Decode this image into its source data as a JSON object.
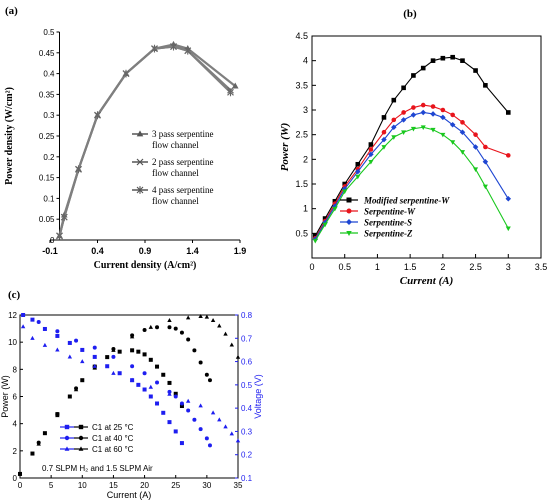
{
  "chart_data": [
    {
      "panel_label": "(a)",
      "type": "line",
      "xlabel": "Current density (A/cm²)",
      "ylabel": "Power density (W/cm²)",
      "xlim": [
        -0.1,
        1.9
      ],
      "ylim": [
        0,
        0.5
      ],
      "xticks": [
        "-0.1",
        "0.4",
        "0.9",
        "1.4",
        "1.9"
      ],
      "yticks": [
        "0",
        "0.05",
        "0.1",
        "0.15",
        "0.2",
        "0.25",
        "0.3",
        "0.35",
        "0.4",
        "0.45",
        "0.5"
      ],
      "xtick_values": [
        -0.1,
        0.4,
        0.9,
        1.4,
        1.9
      ],
      "ytick_values": [
        0,
        0.05,
        0.1,
        0.15,
        0.2,
        0.25,
        0.3,
        0.35,
        0.4,
        0.45,
        0.5
      ],
      "legend_position": "right",
      "series": [
        {
          "name": "3 pass serpentine flow channel",
          "marker": "triangle",
          "color": "#7f7f7f",
          "x": [
            0.0,
            0.05,
            0.2,
            0.4,
            0.7,
            1.0,
            1.2,
            1.35,
            1.85
          ],
          "y": [
            0.01,
            0.06,
            0.17,
            0.3,
            0.4,
            0.46,
            0.47,
            0.46,
            0.37
          ]
        },
        {
          "name": "2 pass serpentine flow channel",
          "marker": "x",
          "color": "#7f7f7f",
          "x": [
            0.0,
            0.05,
            0.2,
            0.4,
            0.7,
            1.0,
            1.2,
            1.35,
            1.8
          ],
          "y": [
            0.01,
            0.055,
            0.17,
            0.3,
            0.4,
            0.46,
            0.465,
            0.455,
            0.36
          ]
        },
        {
          "name": "4 pass serpentine flow channel",
          "marker": "star",
          "color": "#7f7f7f",
          "x": [
            0.0,
            0.05,
            0.2,
            0.4,
            0.7,
            1.0,
            1.2,
            1.35,
            1.8
          ],
          "y": [
            0.01,
            0.055,
            0.17,
            0.3,
            0.4,
            0.46,
            0.465,
            0.455,
            0.355
          ]
        }
      ]
    },
    {
      "panel_label": "(b)",
      "type": "scatter",
      "xlabel": "Current (A)",
      "ylabel": "Power (W)",
      "xlim": [
        0,
        3.5
      ],
      "ylim": [
        0,
        4.5
      ],
      "xticks": [
        "0",
        "0.5",
        "1",
        "1.5",
        "2",
        "2.5",
        "3",
        "3.5"
      ],
      "yticks": [
        "0.5",
        "1",
        "1.5",
        "2",
        "2.5",
        "3",
        "3.5",
        "4",
        "4.5"
      ],
      "xtick_values": [
        0,
        0.5,
        1,
        1.5,
        2,
        2.5,
        3,
        3.5
      ],
      "ytick_values": [
        0.5,
        1,
        1.5,
        2,
        2.5,
        3,
        3.5,
        4,
        4.5
      ],
      "legend_position": "bottom-left",
      "series": [
        {
          "name": "Modified serpentine-W",
          "marker": "square",
          "color": "#000000",
          "x": [
            0.05,
            0.2,
            0.35,
            0.5,
            0.7,
            0.9,
            1.1,
            1.25,
            1.4,
            1.55,
            1.7,
            1.85,
            2.0,
            2.15,
            2.3,
            2.5,
            2.65,
            3.0
          ],
          "y": [
            0.45,
            0.8,
            1.15,
            1.5,
            1.9,
            2.3,
            2.85,
            3.2,
            3.45,
            3.7,
            3.85,
            4.0,
            4.05,
            4.07,
            4.0,
            3.8,
            3.5,
            2.95
          ]
        },
        {
          "name": "Serpentine-W",
          "marker": "circle",
          "color": "#e8141c",
          "x": [
            0.05,
            0.2,
            0.35,
            0.5,
            0.7,
            0.9,
            1.1,
            1.25,
            1.4,
            1.55,
            1.7,
            1.85,
            2.0,
            2.15,
            2.3,
            2.5,
            2.65,
            3.0
          ],
          "y": [
            0.4,
            0.75,
            1.1,
            1.45,
            1.8,
            2.2,
            2.55,
            2.8,
            2.95,
            3.05,
            3.1,
            3.07,
            3.0,
            2.9,
            2.75,
            2.5,
            2.25,
            2.08
          ]
        },
        {
          "name": "Serpentine-S",
          "marker": "diamond",
          "color": "#1e46d2",
          "x": [
            0.05,
            0.2,
            0.35,
            0.5,
            0.7,
            0.9,
            1.1,
            1.25,
            1.4,
            1.55,
            1.7,
            1.85,
            2.0,
            2.15,
            2.3,
            2.5,
            2.65,
            3.0
          ],
          "y": [
            0.38,
            0.72,
            1.05,
            1.4,
            1.75,
            2.1,
            2.4,
            2.65,
            2.8,
            2.9,
            2.95,
            2.92,
            2.85,
            2.7,
            2.55,
            2.25,
            1.95,
            1.2
          ]
        },
        {
          "name": "Serpentine-Z",
          "marker": "triangle-down",
          "color": "#19c81e",
          "x": [
            0.05,
            0.2,
            0.35,
            0.5,
            0.7,
            0.9,
            1.1,
            1.25,
            1.4,
            1.55,
            1.7,
            1.85,
            2.0,
            2.15,
            2.3,
            2.5,
            2.65,
            3.0
          ],
          "y": [
            0.35,
            0.68,
            1.0,
            1.35,
            1.65,
            1.95,
            2.25,
            2.45,
            2.55,
            2.62,
            2.65,
            2.6,
            2.5,
            2.35,
            2.15,
            1.8,
            1.45,
            0.6
          ]
        }
      ]
    },
    {
      "panel_label": "(c)",
      "type": "line",
      "xlabel": "Current (A)",
      "ylabel": "Power (W)",
      "y2label": "Voltage (V)",
      "xlim": [
        0,
        35
      ],
      "ylim": [
        0,
        12
      ],
      "y2lim": [
        0.1,
        0.8
      ],
      "xticks": [
        "0",
        "5",
        "10",
        "15",
        "20",
        "25",
        "30",
        "35"
      ],
      "yticks": [
        "0",
        "2",
        "4",
        "6",
        "8",
        "10",
        "12"
      ],
      "y2ticks": [
        "0.1",
        "0.2",
        "0.3",
        "0.4",
        "0.5",
        "0.6",
        "0.7",
        "0.8"
      ],
      "xtick_values": [
        0,
        5,
        10,
        15,
        20,
        25,
        30,
        35
      ],
      "ytick_values": [
        0,
        2,
        4,
        6,
        8,
        10,
        12
      ],
      "y2tick_values": [
        0.1,
        0.2,
        0.3,
        0.4,
        0.5,
        0.6,
        0.7,
        0.8
      ],
      "annotation": "0.7 SLPM H₂ and 1.5 SLPM Air",
      "legend_position": "bottom-left",
      "series": [
        {
          "name": "C1 at 25 °C",
          "marker": "square",
          "axis": "power",
          "color": "#000000",
          "x": [
            0,
            2,
            4,
            6,
            8,
            10,
            12,
            14,
            16,
            18,
            19,
            20,
            21,
            22,
            23,
            24,
            25,
            26
          ],
          "y": [
            0.3,
            1.8,
            3.3,
            4.7,
            6.0,
            7.2,
            8.2,
            8.9,
            9.3,
            9.4,
            9.3,
            9.1,
            8.7,
            8.2,
            7.6,
            7.0,
            6.2,
            5.3
          ]
        },
        {
          "name": "C1 at 40 °C",
          "marker": "circle",
          "axis": "power",
          "color": "#000000",
          "x": [
            0,
            3,
            6,
            9,
            12,
            15,
            18,
            20,
            22,
            24,
            25,
            26,
            27,
            28,
            29,
            30,
            30.5
          ],
          "y": [
            0.3,
            2.6,
            4.7,
            6.6,
            8.2,
            9.5,
            10.5,
            10.9,
            11.1,
            11.1,
            11.0,
            10.7,
            10.2,
            9.4,
            8.5,
            7.6,
            7.2
          ]
        },
        {
          "name": "C1 at 60 °C",
          "marker": "triangle",
          "axis": "power",
          "color": "#000000",
          "x": [
            0,
            3,
            6,
            9,
            12,
            15,
            18,
            21,
            24,
            27,
            29,
            30,
            31,
            32,
            33,
            34,
            35
          ],
          "y": [
            0.3,
            2.5,
            4.6,
            6.5,
            8.1,
            9.4,
            10.4,
            11.1,
            11.6,
            11.8,
            11.9,
            11.85,
            11.6,
            11.2,
            10.6,
            9.8,
            8.9
          ]
        },
        {
          "name": "C1 at 25 °C",
          "marker": "square",
          "axis": "voltage",
          "color": "#1e1ef0",
          "x": [
            0.5,
            2,
            4,
            6,
            8,
            10,
            12,
            14,
            16,
            18,
            19,
            20,
            21,
            22,
            23,
            24,
            25,
            26
          ],
          "y": [
            0.8,
            0.78,
            0.74,
            0.71,
            0.68,
            0.65,
            0.62,
            0.58,
            0.55,
            0.52,
            0.5,
            0.48,
            0.45,
            0.42,
            0.38,
            0.34,
            0.3,
            0.25
          ]
        },
        {
          "name": "C1 at 40 °C",
          "marker": "circle",
          "axis": "voltage",
          "color": "#1e1ef0",
          "x": [
            0.5,
            3,
            6,
            9,
            12,
            15,
            18,
            20,
            22,
            24,
            25,
            26,
            27,
            28,
            29,
            30,
            30.5
          ],
          "y": [
            0.8,
            0.77,
            0.73,
            0.69,
            0.66,
            0.62,
            0.58,
            0.55,
            0.51,
            0.47,
            0.45,
            0.42,
            0.39,
            0.35,
            0.31,
            0.27,
            0.24
          ]
        },
        {
          "name": "C1 at 60 °C",
          "marker": "triangle",
          "axis": "voltage",
          "color": "#1e1ef0",
          "x": [
            0.5,
            2,
            4,
            6,
            8,
            10,
            12,
            15,
            18,
            21,
            24,
            27,
            29,
            31,
            32,
            33,
            34,
            35
          ],
          "y": [
            0.75,
            0.7,
            0.67,
            0.65,
            0.62,
            0.6,
            0.58,
            0.55,
            0.52,
            0.49,
            0.46,
            0.43,
            0.41,
            0.38,
            0.35,
            0.32,
            0.29,
            0.26
          ]
        }
      ]
    }
  ]
}
